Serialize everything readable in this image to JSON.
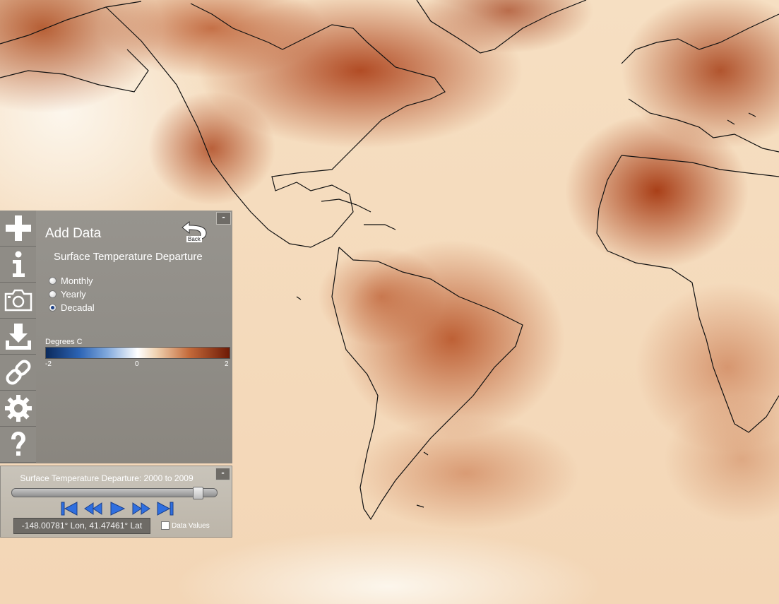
{
  "panel": {
    "title": "Add Data",
    "back_label": "Back",
    "dataset_title": "Surface Temperature Departure",
    "minimize_label": "-",
    "options": [
      {
        "label": "Monthly",
        "checked": false
      },
      {
        "label": "Yearly",
        "checked": false
      },
      {
        "label": "Decadal",
        "checked": true
      }
    ],
    "legend": {
      "label": "Degrees C",
      "min": "-2",
      "mid": "0",
      "max": "2",
      "colors": [
        "#0b2a5c",
        "#2b63b4",
        "#ffffff",
        "#c46a3a",
        "#6e1a06"
      ]
    }
  },
  "toolbar": {
    "items": [
      {
        "name": "add-data",
        "icon": "plus-icon"
      },
      {
        "name": "info",
        "icon": "info-icon"
      },
      {
        "name": "screenshot",
        "icon": "camera-icon"
      },
      {
        "name": "download",
        "icon": "download-icon"
      },
      {
        "name": "link",
        "icon": "link-icon"
      },
      {
        "name": "settings",
        "icon": "gear-icon"
      },
      {
        "name": "help",
        "icon": "question-icon"
      }
    ]
  },
  "timeline": {
    "title": "Surface Temperature Departure: 2000 to 2009",
    "minimize_label": "-",
    "slider_position": 0.93,
    "controls": [
      "skip-to-start-icon",
      "rewind-icon",
      "play-icon",
      "fast-forward-icon",
      "skip-to-end-icon"
    ],
    "coordinates": "-148.00781° Lon, 41.47461° Lat",
    "data_values_label": "Data Values",
    "data_values_checked": false
  },
  "colors": {
    "panel_bg": "#8f8c86",
    "control_blue": "#2f6fe0",
    "warm_dark": "#6e1a06",
    "cool_dark": "#0b2a5c"
  }
}
